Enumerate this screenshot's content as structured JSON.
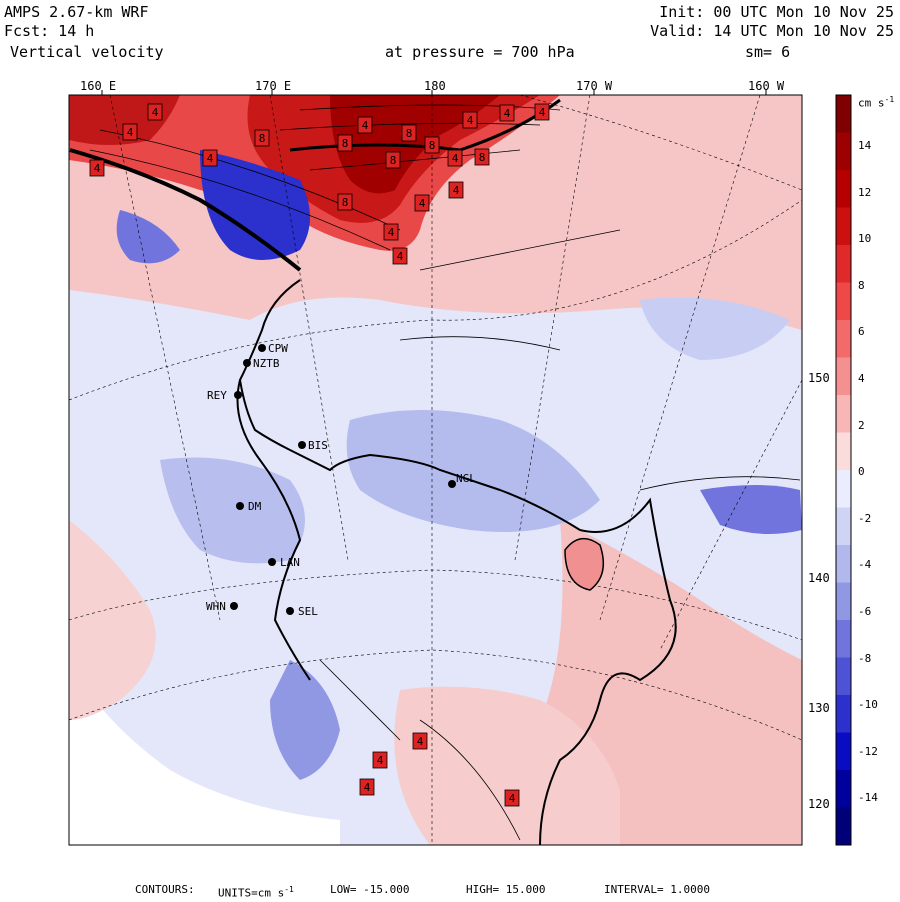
{
  "header": {
    "model": "AMPS 2.67-km WRF",
    "forecast": "Fcst:    14 h",
    "field": "Vertical velocity",
    "init": "Init: 00 UTC Mon 10 Nov 25",
    "valid": "Valid: 14 UTC Mon 10 Nov 25",
    "pressure": "at pressure =  700 hPa",
    "smoothing": "sm= 6"
  },
  "axes": {
    "top_longitudes": [
      "160 E",
      "170 E",
      "180",
      "170 W",
      "160 W"
    ],
    "right_longitudes": [
      "150 W",
      "140 W",
      "130 W",
      "120 W"
    ]
  },
  "stations": [
    {
      "id": "CPW"
    },
    {
      "id": "NZTB"
    },
    {
      "id": "REY"
    },
    {
      "id": "BIS"
    },
    {
      "id": "NGL"
    },
    {
      "id": "DM"
    },
    {
      "id": "LAN"
    },
    {
      "id": "WHN"
    },
    {
      "id": "SEL"
    }
  ],
  "contour_labels": [
    "4",
    "4",
    "4",
    "8",
    "4",
    "8",
    "4",
    "8",
    "4",
    "8",
    "8",
    "4",
    "8",
    "4",
    "8",
    "4",
    "4",
    "4",
    "4",
    "4",
    "4",
    "4",
    "4",
    "4"
  ],
  "colorbar": {
    "units": "cm s",
    "units_superscript": "-1",
    "ticks": [
      "14",
      "12",
      "10",
      "8",
      "6",
      "4",
      "2",
      "0",
      "-2",
      "-4",
      "-6",
      "-8",
      "-10",
      "-12",
      "-14"
    ],
    "colors": [
      "#7e0000",
      "#9c0000",
      "#b60000",
      "#cc1010",
      "#e02a2a",
      "#ee4848",
      "#f26a6a",
      "#f59090",
      "#f8b6b6",
      "#fbdcdc",
      "#ececff",
      "#d0d4f4",
      "#b0b8ec",
      "#9098e4",
      "#7074dc",
      "#4e52d4",
      "#2c30cc",
      "#0a0cc4",
      "#00009c",
      "#000078"
    ]
  },
  "footer": {
    "contours": "CONTOURS:",
    "units_label": "UNITS=cm s",
    "units_sup": "-1",
    "low": "LOW= -15.000",
    "high": "HIGH=  15.000",
    "interval": "INTERVAL=  1.0000"
  }
}
